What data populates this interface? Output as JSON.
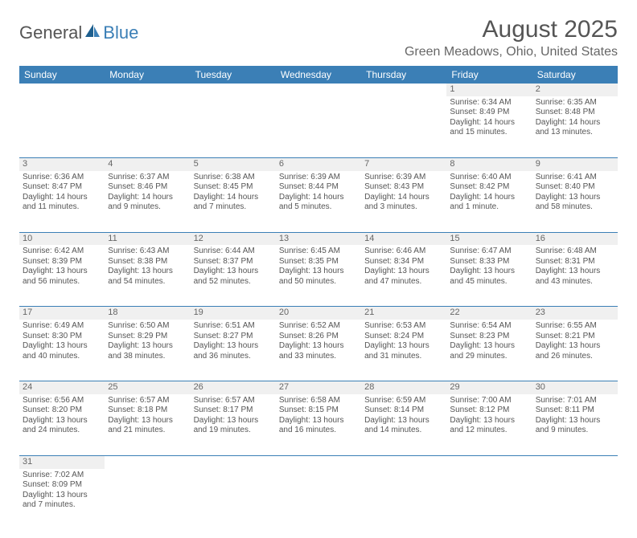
{
  "brand": {
    "part1": "General",
    "part2": "Blue"
  },
  "title": "August 2025",
  "location": "Green Meadows, Ohio, United States",
  "colors": {
    "header_bg": "#3b7fb6",
    "header_fg": "#ffffff",
    "text": "#555555",
    "daynum_bg": "#f0f0f0",
    "rule": "#3b7fb6"
  },
  "weekdays": [
    "Sunday",
    "Monday",
    "Tuesday",
    "Wednesday",
    "Thursday",
    "Friday",
    "Saturday"
  ],
  "weeks": [
    [
      null,
      null,
      null,
      null,
      null,
      {
        "n": "1",
        "sunrise": "Sunrise: 6:34 AM",
        "sunset": "Sunset: 8:49 PM",
        "day1": "Daylight: 14 hours",
        "day2": "and 15 minutes."
      },
      {
        "n": "2",
        "sunrise": "Sunrise: 6:35 AM",
        "sunset": "Sunset: 8:48 PM",
        "day1": "Daylight: 14 hours",
        "day2": "and 13 minutes."
      }
    ],
    [
      {
        "n": "3",
        "sunrise": "Sunrise: 6:36 AM",
        "sunset": "Sunset: 8:47 PM",
        "day1": "Daylight: 14 hours",
        "day2": "and 11 minutes."
      },
      {
        "n": "4",
        "sunrise": "Sunrise: 6:37 AM",
        "sunset": "Sunset: 8:46 PM",
        "day1": "Daylight: 14 hours",
        "day2": "and 9 minutes."
      },
      {
        "n": "5",
        "sunrise": "Sunrise: 6:38 AM",
        "sunset": "Sunset: 8:45 PM",
        "day1": "Daylight: 14 hours",
        "day2": "and 7 minutes."
      },
      {
        "n": "6",
        "sunrise": "Sunrise: 6:39 AM",
        "sunset": "Sunset: 8:44 PM",
        "day1": "Daylight: 14 hours",
        "day2": "and 5 minutes."
      },
      {
        "n": "7",
        "sunrise": "Sunrise: 6:39 AM",
        "sunset": "Sunset: 8:43 PM",
        "day1": "Daylight: 14 hours",
        "day2": "and 3 minutes."
      },
      {
        "n": "8",
        "sunrise": "Sunrise: 6:40 AM",
        "sunset": "Sunset: 8:42 PM",
        "day1": "Daylight: 14 hours",
        "day2": "and 1 minute."
      },
      {
        "n": "9",
        "sunrise": "Sunrise: 6:41 AM",
        "sunset": "Sunset: 8:40 PM",
        "day1": "Daylight: 13 hours",
        "day2": "and 58 minutes."
      }
    ],
    [
      {
        "n": "10",
        "sunrise": "Sunrise: 6:42 AM",
        "sunset": "Sunset: 8:39 PM",
        "day1": "Daylight: 13 hours",
        "day2": "and 56 minutes."
      },
      {
        "n": "11",
        "sunrise": "Sunrise: 6:43 AM",
        "sunset": "Sunset: 8:38 PM",
        "day1": "Daylight: 13 hours",
        "day2": "and 54 minutes."
      },
      {
        "n": "12",
        "sunrise": "Sunrise: 6:44 AM",
        "sunset": "Sunset: 8:37 PM",
        "day1": "Daylight: 13 hours",
        "day2": "and 52 minutes."
      },
      {
        "n": "13",
        "sunrise": "Sunrise: 6:45 AM",
        "sunset": "Sunset: 8:35 PM",
        "day1": "Daylight: 13 hours",
        "day2": "and 50 minutes."
      },
      {
        "n": "14",
        "sunrise": "Sunrise: 6:46 AM",
        "sunset": "Sunset: 8:34 PM",
        "day1": "Daylight: 13 hours",
        "day2": "and 47 minutes."
      },
      {
        "n": "15",
        "sunrise": "Sunrise: 6:47 AM",
        "sunset": "Sunset: 8:33 PM",
        "day1": "Daylight: 13 hours",
        "day2": "and 45 minutes."
      },
      {
        "n": "16",
        "sunrise": "Sunrise: 6:48 AM",
        "sunset": "Sunset: 8:31 PM",
        "day1": "Daylight: 13 hours",
        "day2": "and 43 minutes."
      }
    ],
    [
      {
        "n": "17",
        "sunrise": "Sunrise: 6:49 AM",
        "sunset": "Sunset: 8:30 PM",
        "day1": "Daylight: 13 hours",
        "day2": "and 40 minutes."
      },
      {
        "n": "18",
        "sunrise": "Sunrise: 6:50 AM",
        "sunset": "Sunset: 8:29 PM",
        "day1": "Daylight: 13 hours",
        "day2": "and 38 minutes."
      },
      {
        "n": "19",
        "sunrise": "Sunrise: 6:51 AM",
        "sunset": "Sunset: 8:27 PM",
        "day1": "Daylight: 13 hours",
        "day2": "and 36 minutes."
      },
      {
        "n": "20",
        "sunrise": "Sunrise: 6:52 AM",
        "sunset": "Sunset: 8:26 PM",
        "day1": "Daylight: 13 hours",
        "day2": "and 33 minutes."
      },
      {
        "n": "21",
        "sunrise": "Sunrise: 6:53 AM",
        "sunset": "Sunset: 8:24 PM",
        "day1": "Daylight: 13 hours",
        "day2": "and 31 minutes."
      },
      {
        "n": "22",
        "sunrise": "Sunrise: 6:54 AM",
        "sunset": "Sunset: 8:23 PM",
        "day1": "Daylight: 13 hours",
        "day2": "and 29 minutes."
      },
      {
        "n": "23",
        "sunrise": "Sunrise: 6:55 AM",
        "sunset": "Sunset: 8:21 PM",
        "day1": "Daylight: 13 hours",
        "day2": "and 26 minutes."
      }
    ],
    [
      {
        "n": "24",
        "sunrise": "Sunrise: 6:56 AM",
        "sunset": "Sunset: 8:20 PM",
        "day1": "Daylight: 13 hours",
        "day2": "and 24 minutes."
      },
      {
        "n": "25",
        "sunrise": "Sunrise: 6:57 AM",
        "sunset": "Sunset: 8:18 PM",
        "day1": "Daylight: 13 hours",
        "day2": "and 21 minutes."
      },
      {
        "n": "26",
        "sunrise": "Sunrise: 6:57 AM",
        "sunset": "Sunset: 8:17 PM",
        "day1": "Daylight: 13 hours",
        "day2": "and 19 minutes."
      },
      {
        "n": "27",
        "sunrise": "Sunrise: 6:58 AM",
        "sunset": "Sunset: 8:15 PM",
        "day1": "Daylight: 13 hours",
        "day2": "and 16 minutes."
      },
      {
        "n": "28",
        "sunrise": "Sunrise: 6:59 AM",
        "sunset": "Sunset: 8:14 PM",
        "day1": "Daylight: 13 hours",
        "day2": "and 14 minutes."
      },
      {
        "n": "29",
        "sunrise": "Sunrise: 7:00 AM",
        "sunset": "Sunset: 8:12 PM",
        "day1": "Daylight: 13 hours",
        "day2": "and 12 minutes."
      },
      {
        "n": "30",
        "sunrise": "Sunrise: 7:01 AM",
        "sunset": "Sunset: 8:11 PM",
        "day1": "Daylight: 13 hours",
        "day2": "and 9 minutes."
      }
    ],
    [
      {
        "n": "31",
        "sunrise": "Sunrise: 7:02 AM",
        "sunset": "Sunset: 8:09 PM",
        "day1": "Daylight: 13 hours",
        "day2": "and 7 minutes."
      },
      null,
      null,
      null,
      null,
      null,
      null
    ]
  ]
}
